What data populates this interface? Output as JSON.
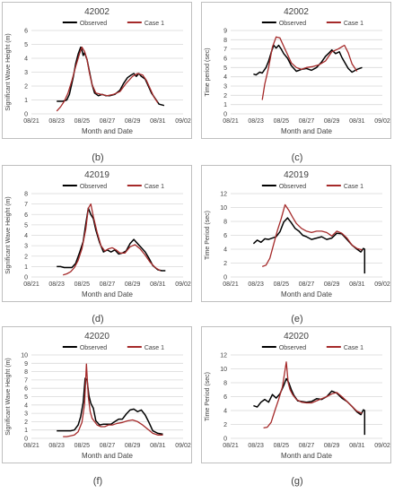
{
  "colors": {
    "observed": "#000000",
    "case1": "#a52a2a",
    "grid": "#d9d9d9",
    "border": "#bfbfbf",
    "text": "#404040"
  },
  "legend": {
    "observed": "Observed",
    "case1": "Case 1"
  },
  "chart_data": [
    {
      "id": "b",
      "type": "line",
      "title": "42002",
      "xlabel": "Month and Date",
      "ylabel": "Significant Wave Height (m)",
      "caption": "(b)",
      "ylim": [
        0,
        6
      ],
      "yticks": [
        0,
        1,
        2,
        3,
        4,
        5,
        6
      ],
      "xticks": [
        "08/21",
        "08/23",
        "08/25",
        "08/27",
        "08/29",
        "08/31",
        "09/02"
      ],
      "grid": true,
      "legend_position": "top-right",
      "series": [
        {
          "name": "Observed",
          "x": [
            2.0,
            2.3,
            2.5,
            2.8,
            3.0,
            3.3,
            3.5,
            3.7,
            3.9,
            4.0,
            4.1,
            4.2,
            4.4,
            4.6,
            4.8,
            5.0,
            5.3,
            5.6,
            5.9,
            6.2,
            6.6,
            7.0,
            7.3,
            7.6,
            7.9,
            8.1,
            8.3,
            8.5,
            8.7,
            9.0,
            9.2,
            9.5,
            9.8,
            10.1,
            10.5
          ],
          "values": [
            0.9,
            0.9,
            0.9,
            1.0,
            1.4,
            2.6,
            3.6,
            4.3,
            4.8,
            4.6,
            4.2,
            4.4,
            3.9,
            3.0,
            2.1,
            1.5,
            1.3,
            1.4,
            1.3,
            1.3,
            1.4,
            1.7,
            2.2,
            2.6,
            2.8,
            2.9,
            2.7,
            2.9,
            2.7,
            2.5,
            2.1,
            1.5,
            1.1,
            0.7,
            0.6
          ]
        },
        {
          "name": "Case 1",
          "x": [
            2.0,
            2.3,
            2.6,
            2.9,
            3.2,
            3.5,
            3.8,
            4.0,
            4.2,
            4.4,
            4.6,
            4.8,
            5.1,
            5.5,
            6.0,
            6.5,
            7.0,
            7.5,
            8.0,
            8.4,
            8.8,
            9.1,
            9.4,
            9.7,
            10.0
          ],
          "values": [
            0.2,
            0.5,
            0.9,
            1.5,
            2.4,
            3.4,
            4.3,
            4.8,
            4.5,
            3.9,
            2.9,
            2.1,
            1.5,
            1.4,
            1.3,
            1.4,
            1.6,
            2.2,
            2.7,
            2.9,
            2.8,
            2.4,
            1.8,
            1.2,
            0.8
          ]
        }
      ]
    },
    {
      "id": "c",
      "type": "line",
      "title": "42002",
      "xlabel": "Month and Date",
      "ylabel": "Time period (sec)",
      "caption": "(c)",
      "ylim": [
        0,
        9
      ],
      "yticks": [
        0,
        1,
        2,
        3,
        4,
        5,
        6,
        7,
        8,
        9
      ],
      "xticks": [
        "08/21",
        "08/23",
        "08/25",
        "08/27",
        "08/29",
        "08/31",
        "09/02"
      ],
      "grid": true,
      "legend_position": "top-right",
      "series": [
        {
          "name": "Observed",
          "x": [
            1.8,
            2.0,
            2.3,
            2.5,
            2.8,
            3.0,
            3.2,
            3.4,
            3.6,
            3.8,
            4.0,
            4.2,
            4.5,
            4.8,
            5.2,
            5.6,
            6.0,
            6.4,
            6.8,
            7.2,
            7.5,
            7.8,
            8.0,
            8.3,
            8.6,
            8.8,
            9.0,
            9.3,
            9.6,
            10.0,
            10.4
          ],
          "values": [
            4.3,
            4.2,
            4.5,
            4.4,
            5.0,
            5.7,
            6.6,
            7.4,
            7.1,
            7.4,
            7.0,
            6.5,
            6.0,
            5.2,
            4.6,
            4.8,
            4.9,
            4.7,
            5.0,
            5.6,
            6.2,
            6.6,
            6.9,
            6.5,
            6.7,
            6.1,
            5.6,
            4.9,
            4.5,
            4.8,
            5.0
          ]
        },
        {
          "name": "Case 1",
          "x": [
            2.5,
            2.7,
            3.0,
            3.3,
            3.6,
            3.9,
            4.2,
            4.5,
            4.8,
            5.2,
            5.6,
            6.0,
            6.5,
            7.0,
            7.5,
            8.0,
            8.5,
            9.0,
            9.3,
            9.6,
            10.0
          ],
          "values": [
            1.5,
            3.2,
            5.0,
            7.2,
            8.3,
            8.2,
            7.3,
            6.4,
            5.5,
            5.0,
            4.8,
            5.0,
            5.1,
            5.3,
            5.7,
            6.7,
            7.0,
            7.4,
            6.6,
            5.4,
            4.6
          ]
        }
      ]
    },
    {
      "id": "d",
      "type": "line",
      "title": "42019",
      "xlabel": "Month and Date",
      "ylabel": "Significant Wave Height (m)",
      "caption": "(d)",
      "ylim": [
        0,
        8
      ],
      "yticks": [
        0,
        1,
        2,
        3,
        4,
        5,
        6,
        7,
        8
      ],
      "xticks": [
        "08/21",
        "08/23",
        "08/25",
        "08/27",
        "08/29",
        "08/31",
        "09/02"
      ],
      "grid": true,
      "legend_position": "top-right",
      "series": [
        {
          "name": "Observed",
          "x": [
            2.0,
            2.3,
            2.6,
            2.9,
            3.2,
            3.5,
            3.8,
            4.1,
            4.3,
            4.5,
            4.7,
            4.9,
            5.1,
            5.4,
            5.7,
            6.0,
            6.3,
            6.6,
            6.9,
            7.2,
            7.5,
            7.8,
            8.1,
            8.4,
            8.7,
            9.0,
            9.3,
            9.6,
            10.0,
            10.3,
            10.6
          ],
          "values": [
            1.0,
            1.0,
            0.9,
            0.9,
            0.9,
            1.3,
            2.3,
            3.4,
            5.1,
            6.6,
            6.0,
            5.6,
            4.5,
            3.3,
            2.4,
            2.6,
            2.4,
            2.6,
            2.2,
            2.3,
            2.5,
            3.2,
            3.6,
            3.2,
            2.8,
            2.4,
            1.8,
            1.1,
            0.7,
            0.6,
            0.6
          ]
        },
        {
          "name": "Case 1",
          "x": [
            2.5,
            2.8,
            3.1,
            3.4,
            3.7,
            4.0,
            4.3,
            4.5,
            4.7,
            4.9,
            5.2,
            5.5,
            5.8,
            6.1,
            6.4,
            6.7,
            7.0,
            7.4,
            7.8,
            8.2,
            8.6,
            9.0,
            9.4,
            9.8,
            10.2
          ],
          "values": [
            0.2,
            0.3,
            0.5,
            0.9,
            1.6,
            2.7,
            4.6,
            6.6,
            7.0,
            5.8,
            4.3,
            3.0,
            2.5,
            2.7,
            2.8,
            2.6,
            2.3,
            2.3,
            2.9,
            3.1,
            2.7,
            2.1,
            1.4,
            0.9,
            0.6
          ]
        }
      ]
    },
    {
      "id": "e",
      "type": "line",
      "title": "42019",
      "xlabel": "Month and Date",
      "ylabel": "Time Period (sec)",
      "caption": "(e)",
      "ylim": [
        0,
        12
      ],
      "yticks": [
        0,
        2,
        4,
        6,
        8,
        10,
        12
      ],
      "xticks": [
        "08/21",
        "08/23",
        "08/25",
        "08/27",
        "08/29",
        "08/31",
        "09/02"
      ],
      "grid": true,
      "legend_position": "top-right",
      "series": [
        {
          "name": "Observed",
          "x": [
            1.8,
            2.1,
            2.4,
            2.7,
            3.0,
            3.3,
            3.6,
            3.9,
            4.2,
            4.5,
            4.8,
            5.1,
            5.4,
            5.7,
            6.0,
            6.4,
            6.8,
            7.2,
            7.6,
            8.0,
            8.4,
            8.8,
            9.2,
            9.6,
            10.0,
            10.3,
            10.5,
            10.6,
            10.6
          ],
          "values": [
            4.8,
            5.3,
            5.0,
            5.5,
            5.4,
            5.6,
            5.8,
            6.5,
            7.9,
            8.5,
            7.8,
            7.0,
            6.6,
            6.0,
            5.8,
            5.4,
            5.6,
            5.8,
            5.4,
            5.6,
            6.3,
            6.2,
            5.4,
            4.6,
            4.0,
            3.6,
            4.1,
            4.0,
            0.5
          ]
        },
        {
          "name": "Case 1",
          "x": [
            2.5,
            2.8,
            3.1,
            3.4,
            3.7,
            4.0,
            4.3,
            4.6,
            4.9,
            5.2,
            5.6,
            6.0,
            6.4,
            6.8,
            7.2,
            7.6,
            8.0,
            8.4,
            8.8,
            9.2,
            9.6,
            10.0,
            10.4
          ],
          "values": [
            1.5,
            1.7,
            2.7,
            4.7,
            6.7,
            8.4,
            10.4,
            9.6,
            8.6,
            7.7,
            7.0,
            6.6,
            6.4,
            6.6,
            6.6,
            6.4,
            5.9,
            6.6,
            6.3,
            5.6,
            4.6,
            4.1,
            3.9
          ]
        }
      ]
    },
    {
      "id": "f",
      "type": "line",
      "title": "42020",
      "xlabel": "Month and Date",
      "ylabel": "Significant Wave Height (m)",
      "caption": "(f)",
      "ylim": [
        0,
        10
      ],
      "yticks": [
        0,
        1,
        2,
        3,
        4,
        5,
        6,
        7,
        8,
        9,
        10
      ],
      "xticks": [
        "08/21",
        "08/23",
        "08/25",
        "08/27",
        "08/29",
        "08/31",
        "09/02"
      ],
      "grid": true,
      "legend_position": "top-right",
      "series": [
        {
          "name": "Observed",
          "x": [
            2.0,
            2.4,
            2.8,
            3.1,
            3.4,
            3.7,
            3.9,
            4.1,
            4.25,
            4.4,
            4.55,
            4.7,
            4.9,
            5.1,
            5.4,
            5.7,
            6.0,
            6.3,
            6.6,
            6.9,
            7.2,
            7.5,
            7.8,
            8.1,
            8.4,
            8.7,
            9.0,
            9.3,
            9.6,
            10.0,
            10.4
          ],
          "values": [
            0.9,
            0.9,
            0.9,
            0.9,
            1.0,
            1.6,
            2.6,
            4.3,
            7.2,
            7.0,
            5.1,
            4.2,
            3.6,
            2.1,
            1.6,
            1.7,
            1.7,
            1.7,
            2.0,
            2.3,
            2.3,
            2.9,
            3.4,
            3.5,
            3.2,
            3.4,
            2.8,
            1.9,
            0.9,
            0.6,
            0.5
          ]
        },
        {
          "name": "Case 1",
          "x": [
            2.5,
            2.8,
            3.1,
            3.4,
            3.7,
            4.0,
            4.2,
            4.35,
            4.5,
            4.65,
            4.8,
            5.0,
            5.2,
            5.5,
            5.8,
            6.1,
            6.4,
            6.8,
            7.2,
            7.6,
            8.0,
            8.4,
            8.8,
            9.2,
            9.6,
            10.0,
            10.4
          ],
          "values": [
            0.2,
            0.2,
            0.3,
            0.4,
            0.8,
            1.9,
            4.1,
            8.9,
            5.0,
            3.2,
            2.4,
            2.0,
            1.6,
            1.4,
            1.4,
            1.6,
            1.6,
            1.8,
            1.9,
            2.1,
            2.2,
            2.0,
            1.6,
            1.1,
            0.6,
            0.4,
            0.4
          ]
        }
      ]
    },
    {
      "id": "g",
      "type": "line",
      "title": "42020",
      "xlabel": "Month and Date",
      "ylabel": "Time Period (sec)",
      "caption": "(g)",
      "ylim": [
        0,
        12
      ],
      "yticks": [
        0,
        2,
        4,
        6,
        8,
        10,
        12
      ],
      "xticks": [
        "08/21",
        "08/23",
        "08/25",
        "08/27",
        "08/29",
        "08/31",
        "09/02"
      ],
      "grid": true,
      "legend_position": "top-right",
      "series": [
        {
          "name": "Observed",
          "x": [
            1.8,
            2.1,
            2.4,
            2.7,
            3.0,
            3.3,
            3.6,
            3.9,
            4.2,
            4.4,
            4.6,
            4.8,
            5.0,
            5.3,
            5.6,
            6.0,
            6.4,
            6.8,
            7.2,
            7.6,
            8.0,
            8.4,
            8.8,
            9.2,
            9.6,
            10.0,
            10.3,
            10.5,
            10.6,
            10.6
          ],
          "values": [
            4.7,
            4.5,
            5.2,
            5.6,
            5.2,
            6.3,
            5.8,
            6.4,
            7.6,
            8.6,
            8.0,
            7.0,
            6.2,
            5.4,
            5.3,
            5.2,
            5.3,
            5.7,
            5.6,
            6.0,
            6.8,
            6.5,
            5.8,
            5.3,
            4.6,
            3.8,
            3.4,
            4.1,
            4.0,
            0.5
          ]
        },
        {
          "name": "Case 1",
          "x": [
            2.6,
            2.9,
            3.2,
            3.5,
            3.8,
            4.1,
            4.4,
            4.55,
            4.7,
            4.9,
            5.2,
            5.6,
            6.0,
            6.4,
            6.8,
            7.2,
            7.6,
            8.0,
            8.4,
            8.8,
            9.2,
            9.6,
            10.0,
            10.4
          ],
          "values": [
            1.5,
            1.6,
            2.3,
            4.0,
            5.6,
            7.4,
            11.0,
            8.0,
            7.0,
            6.3,
            5.6,
            5.2,
            5.1,
            5.1,
            5.4,
            5.7,
            6.0,
            6.4,
            6.6,
            6.0,
            5.3,
            4.6,
            3.9,
            3.6
          ]
        }
      ]
    }
  ]
}
